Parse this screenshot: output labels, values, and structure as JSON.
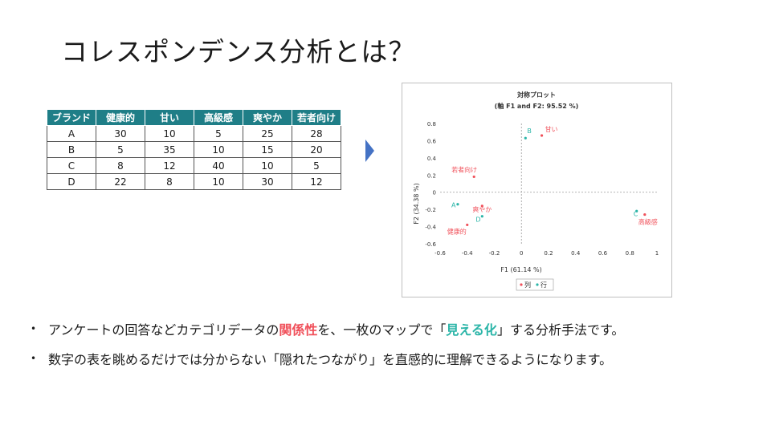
{
  "slide": {
    "title": "コレスポンデンス分析とは？"
  },
  "table": {
    "headers": [
      "ブランド",
      "健康的",
      "甘い",
      "高級感",
      "爽やか",
      "若者向け"
    ],
    "rows": [
      [
        "A",
        "30",
        "10",
        "5",
        "25",
        "28"
      ],
      [
        "B",
        "5",
        "35",
        "10",
        "15",
        "20"
      ],
      [
        "C",
        "8",
        "12",
        "40",
        "10",
        "5"
      ],
      [
        "D",
        "22",
        "8",
        "10",
        "30",
        "12"
      ]
    ],
    "header_color": "#1f7e87"
  },
  "arrow": {
    "color": "#4472c4",
    "icon": "right-triangle-arrow"
  },
  "chart_data": {
    "type": "scatter",
    "title": "対称プロット",
    "subtitle": "(軸 F1 and F2: 95.52 %)",
    "xlabel": "F1 (61.14 %)",
    "ylabel": "F2 (34.38 %)",
    "xlim": [
      -0.6,
      1
    ],
    "ylim": [
      -0.6,
      0.8
    ],
    "xticks": [
      "-0.6",
      "-0.4",
      "-0.2",
      "0",
      "0.2",
      "0.4",
      "0.6",
      "0.8",
      "1"
    ],
    "yticks": [
      "0.8",
      "0.6",
      "0.4",
      "0.2",
      "0",
      "-0.2",
      "-0.4",
      "-0.6"
    ],
    "grid": false,
    "legend": "bottom",
    "series": [
      {
        "name": "列",
        "color": "#f0505a",
        "points": [
          {
            "label": "甘い",
            "x": 0.15,
            "y": 0.66
          },
          {
            "label": "若者向け",
            "x": -0.35,
            "y": 0.18
          },
          {
            "label": "爽やか",
            "x": -0.29,
            "y": -0.16
          },
          {
            "label": "健康的",
            "x": -0.4,
            "y": -0.38
          },
          {
            "label": "高級感",
            "x": 0.91,
            "y": -0.26
          }
        ]
      },
      {
        "name": "行",
        "color": "#2bb5a8",
        "points": [
          {
            "label": "B",
            "x": 0.03,
            "y": 0.63
          },
          {
            "label": "A",
            "x": -0.47,
            "y": -0.14
          },
          {
            "label": "D",
            "x": -0.29,
            "y": -0.28
          },
          {
            "label": "C",
            "x": 0.85,
            "y": -0.22
          }
        ]
      }
    ]
  },
  "bullets": [
    {
      "parts": [
        {
          "text": "アンケートの回答などカテゴリデータの",
          "style": "normal"
        },
        {
          "text": "関係性",
          "style": "red"
        },
        {
          "text": "を、一枚のマップで「",
          "style": "normal"
        },
        {
          "text": "見える化",
          "style": "teal"
        },
        {
          "text": "」する分析手法です。",
          "style": "normal"
        }
      ]
    },
    {
      "parts": [
        {
          "text": "数字の表を眺めるだけでは分からない「隠れたつながり」を直感的に理解できるようになります。",
          "style": "normal"
        }
      ]
    }
  ],
  "bullet_marker": "•"
}
